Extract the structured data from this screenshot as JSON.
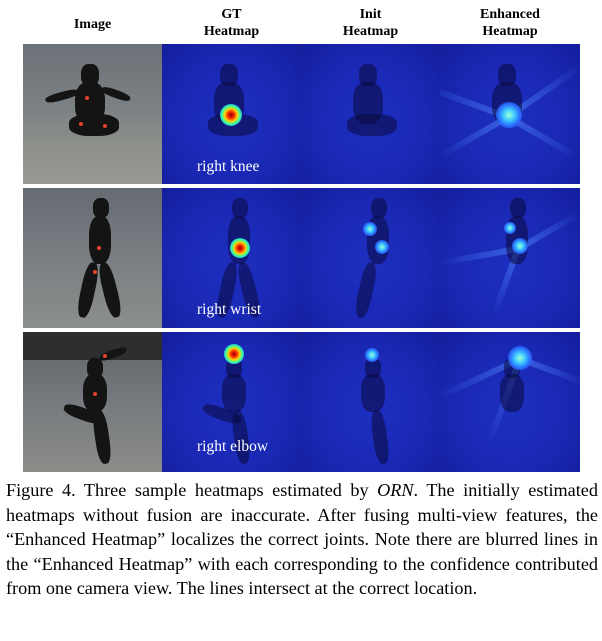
{
  "headers": {
    "image": "Image",
    "gt_line1": "GT",
    "gt_line2": "Heatmap",
    "init_line1": "Init",
    "init_line2": "Heatmap",
    "enh_line1": "Enhanced",
    "enh_line2": "Heatmap"
  },
  "rows": [
    {
      "joint_label": "right knee"
    },
    {
      "joint_label": "right wrist"
    },
    {
      "joint_label": "right elbow"
    }
  ],
  "caption": {
    "part1": "Figure 4. Three sample heatmaps estimated by ",
    "italic": "ORN",
    "part2": ". The initially estimated heatmaps without fusion are inaccurate.  After fusing multi-view features, the “Enhanced Heatmap” localizes the correct joints.  Note there are blurred lines in the “Enhanced Heatmap” with each corresponding to the confidence contributed from one camera view. The lines intersect at the correct location."
  },
  "colors": {
    "heatmap_background": "#1a28b4",
    "peak": "#ff2a00",
    "label_text": "#ffffff"
  }
}
